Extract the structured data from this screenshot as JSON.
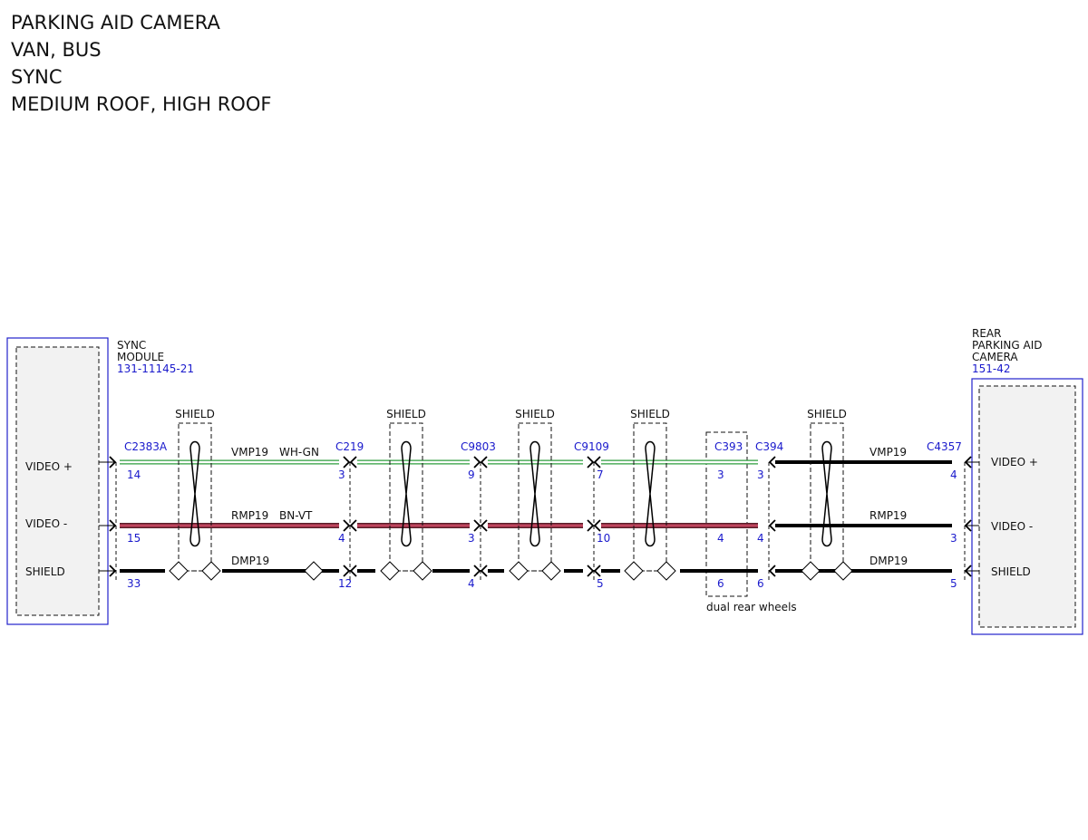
{
  "header": {
    "lines": [
      "PARKING AID CAMERA",
      "VAN, BUS",
      "SYNC",
      "MEDIUM ROOF, HIGH ROOF"
    ]
  },
  "left_module": {
    "name": [
      "SYNC",
      "MODULE"
    ],
    "part_number": "131-11145-21",
    "pins": [
      "VIDEO +",
      "VIDEO -",
      "SHIELD"
    ]
  },
  "right_module": {
    "name": [
      "REAR",
      "PARKING AID",
      "CAMERA"
    ],
    "part_number": "151-42",
    "pins": [
      "VIDEO +",
      "VIDEO -",
      "SHIELD"
    ]
  },
  "connectors": [
    {
      "id": "C2383A",
      "pins": [
        14,
        15,
        33
      ]
    },
    {
      "id": "C219",
      "pins": [
        3,
        4,
        12
      ]
    },
    {
      "id": "C9803",
      "pins": [
        9,
        3,
        4
      ]
    },
    {
      "id": "C9109",
      "pins": [
        7,
        10,
        5
      ]
    },
    {
      "id": "C393",
      "pins": [
        3,
        4,
        6
      ]
    },
    {
      "id": "C394",
      "pins": [
        3,
        4,
        6
      ]
    },
    {
      "id": "C4357",
      "pins": [
        4,
        3,
        5
      ]
    }
  ],
  "wires_left": [
    {
      "circuit": "VMP19",
      "color": "WH-GN"
    },
    {
      "circuit": "RMP19",
      "color": "BN-VT"
    },
    {
      "circuit": "DMP19"
    }
  ],
  "wires_right": [
    {
      "circuit": "VMP19"
    },
    {
      "circuit": "RMP19"
    },
    {
      "circuit": "DMP19"
    }
  ],
  "shields": [
    "SHIELD",
    "SHIELD",
    "SHIELD",
    "SHIELD",
    "SHIELD"
  ],
  "note": "dual rear wheels"
}
